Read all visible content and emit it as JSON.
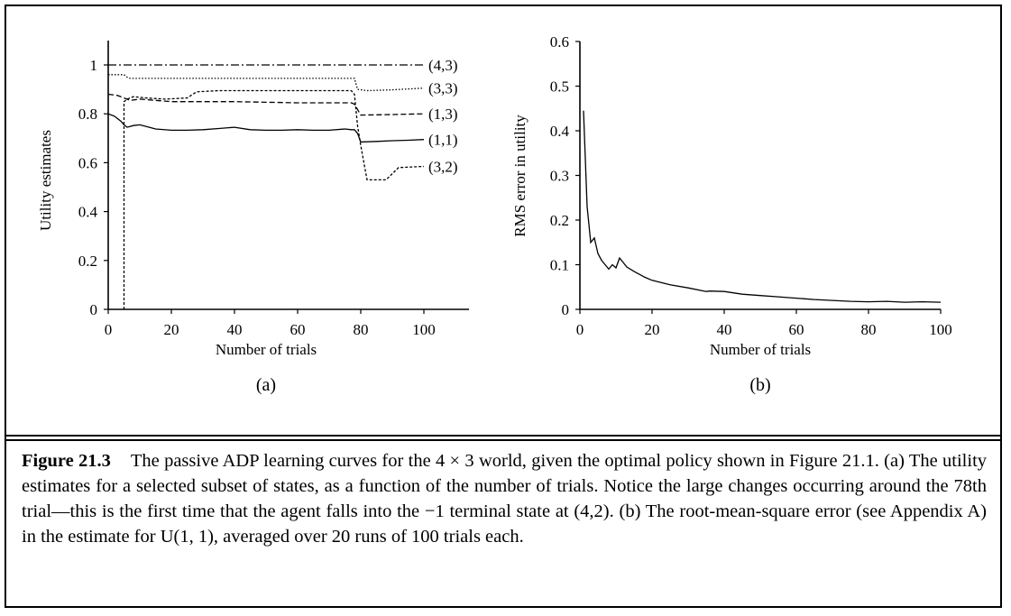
{
  "chart_data": [
    {
      "type": "line",
      "panel_label": "(a)",
      "xlabel": "Number of trials",
      "ylabel": "Utility estimates",
      "xlim": [
        0,
        100
      ],
      "ylim": [
        0,
        1
      ],
      "xticks": [
        "0",
        "20",
        "40",
        "60",
        "80",
        "100"
      ],
      "yticks": [
        "0",
        "0.2",
        "0.4",
        "0.6",
        "0.8",
        "1"
      ],
      "grid": false,
      "legend": "inline labels at right end of each series",
      "series": [
        {
          "name": "(4,3)",
          "style": "dash-dot",
          "points": [
            [
              0,
              1
            ],
            [
              100,
              1
            ]
          ]
        },
        {
          "name": "(3,3)",
          "style": "dotted",
          "points": [
            [
              0,
              0.96
            ],
            [
              5,
              0.96
            ],
            [
              6,
              0.95
            ],
            [
              7,
              0.945
            ],
            [
              12,
              0.945
            ],
            [
              20,
              0.945
            ],
            [
              40,
              0.945
            ],
            [
              60,
              0.945
            ],
            [
              77,
              0.945
            ],
            [
              78,
              0.945
            ],
            [
              79,
              0.9
            ],
            [
              82,
              0.895
            ],
            [
              90,
              0.898
            ],
            [
              100,
              0.905
            ]
          ]
        },
        {
          "name": "(1,3)",
          "style": "dashed",
          "points": [
            [
              0,
              0.88
            ],
            [
              3,
              0.875
            ],
            [
              5,
              0.865
            ],
            [
              7,
              0.855
            ],
            [
              10,
              0.86
            ],
            [
              15,
              0.855
            ],
            [
              20,
              0.85
            ],
            [
              40,
              0.85
            ],
            [
              60,
              0.845
            ],
            [
              77,
              0.845
            ],
            [
              78,
              0.84
            ],
            [
              80,
              0.795
            ],
            [
              90,
              0.797
            ],
            [
              100,
              0.8
            ]
          ]
        },
        {
          "name": "(1,1)",
          "style": "solid",
          "points": [
            [
              0,
              0.8
            ],
            [
              2,
              0.79
            ],
            [
              4,
              0.77
            ],
            [
              5,
              0.755
            ],
            [
              6,
              0.745
            ],
            [
              8,
              0.752
            ],
            [
              10,
              0.755
            ],
            [
              13,
              0.745
            ],
            [
              15,
              0.738
            ],
            [
              20,
              0.733
            ],
            [
              25,
              0.733
            ],
            [
              30,
              0.735
            ],
            [
              35,
              0.74
            ],
            [
              40,
              0.745
            ],
            [
              45,
              0.735
            ],
            [
              50,
              0.733
            ],
            [
              55,
              0.733
            ],
            [
              60,
              0.735
            ],
            [
              65,
              0.733
            ],
            [
              70,
              0.733
            ],
            [
              75,
              0.738
            ],
            [
              77,
              0.735
            ],
            [
              78,
              0.735
            ],
            [
              79,
              0.72
            ],
            [
              80,
              0.685
            ],
            [
              85,
              0.687
            ],
            [
              90,
              0.69
            ],
            [
              95,
              0.692
            ],
            [
              100,
              0.695
            ]
          ]
        },
        {
          "name": "(3,2)",
          "style": "short-dashed",
          "points": [
            [
              5,
              0
            ],
            [
              5,
              0.85
            ],
            [
              6,
              0.86
            ],
            [
              8,
              0.87
            ],
            [
              12,
              0.865
            ],
            [
              18,
              0.86
            ],
            [
              25,
              0.865
            ],
            [
              28,
              0.89
            ],
            [
              35,
              0.895
            ],
            [
              45,
              0.895
            ],
            [
              55,
              0.895
            ],
            [
              70,
              0.895
            ],
            [
              77,
              0.895
            ],
            [
              78,
              0.88
            ],
            [
              79,
              0.75
            ],
            [
              80,
              0.67
            ],
            [
              81,
              0.6
            ],
            [
              82,
              0.53
            ],
            [
              88,
              0.53
            ],
            [
              90,
              0.555
            ],
            [
              92,
              0.58
            ],
            [
              100,
              0.585
            ]
          ]
        }
      ]
    },
    {
      "type": "line",
      "panel_label": "(b)",
      "xlabel": "Number of trials",
      "ylabel": "RMS error in utility",
      "xlim": [
        0,
        100
      ],
      "ylim": [
        0,
        0.6
      ],
      "xticks": [
        "0",
        "20",
        "40",
        "60",
        "80",
        "100"
      ],
      "yticks": [
        "0",
        "0.1",
        "0.2",
        "0.3",
        "0.4",
        "0.5",
        "0.6"
      ],
      "grid": false,
      "series": [
        {
          "style": "solid",
          "points": [
            [
              1,
              0.445
            ],
            [
              2,
              0.23
            ],
            [
              3,
              0.15
            ],
            [
              4,
              0.16
            ],
            [
              5,
              0.125
            ],
            [
              6,
              0.11
            ],
            [
              7,
              0.1
            ],
            [
              8,
              0.09
            ],
            [
              9,
              0.1
            ],
            [
              10,
              0.093
            ],
            [
              11,
              0.115
            ],
            [
              12,
              0.105
            ],
            [
              13,
              0.095
            ],
            [
              15,
              0.085
            ],
            [
              18,
              0.072
            ],
            [
              20,
              0.065
            ],
            [
              25,
              0.055
            ],
            [
              30,
              0.048
            ],
            [
              35,
              0.04
            ],
            [
              36,
              0.041
            ],
            [
              40,
              0.04
            ],
            [
              45,
              0.034
            ],
            [
              50,
              0.031
            ],
            [
              55,
              0.028
            ],
            [
              60,
              0.025
            ],
            [
              65,
              0.022
            ],
            [
              70,
              0.02
            ],
            [
              75,
              0.018
            ],
            [
              80,
              0.017
            ],
            [
              85,
              0.018
            ],
            [
              90,
              0.016
            ],
            [
              95,
              0.017
            ],
            [
              100,
              0.016
            ]
          ]
        }
      ]
    }
  ],
  "caption": {
    "figure_label": "Figure 21.3",
    "line1": "The passive ADP learning curves for the 4 × 3 world, given the optimal policy",
    "line2": "shown in Figure 21.1. (a) The utility estimates for a selected subset of states, as a function",
    "line3": "of the number of trials. Notice the large changes occurring around the 78th trial—this is the",
    "line4": "first time that the agent falls into the −1 terminal state at (4,2). (b) The root-mean-square",
    "line5": "error (see Appendix A) in the estimate for U(1, 1), averaged over 20 runs of 100 trials each."
  }
}
